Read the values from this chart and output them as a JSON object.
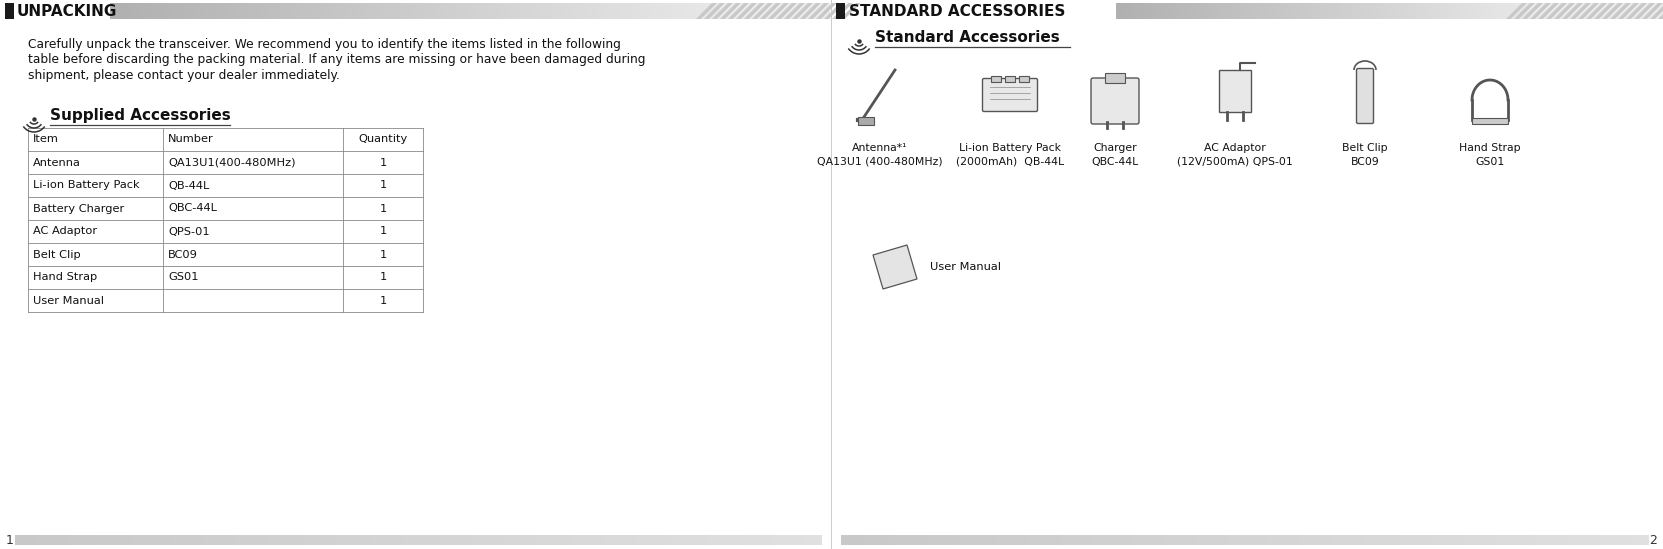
{
  "bg_color": "#ffffff",
  "left_title": "UNPACKING",
  "right_title": "STANDARD ACCESSORIES",
  "body_text_lines": [
    "Carefully unpack the transceiver. We recommend you to identify the items listed in the following",
    "table before discarding the packing material. If any items are missing or have been damaged during",
    "shipment, please contact your dealer immediately."
  ],
  "supplied_heading": "Supplied Accessories",
  "standard_heading": "Standard Accessories",
  "table_headers": [
    "Item",
    "Number",
    "Quantity"
  ],
  "table_rows": [
    [
      "Antenna",
      "QA13U1(400-480MHz)",
      "1"
    ],
    [
      "Li-ion Battery Pack",
      "QB-44L",
      "1"
    ],
    [
      "Battery Charger",
      "QBC-44L",
      "1"
    ],
    [
      "AC Adaptor",
      "QPS-01",
      "1"
    ],
    [
      "Belt Clip",
      "BC09",
      "1"
    ],
    [
      "Hand Strap",
      "GS01",
      "1"
    ],
    [
      "User Manual",
      "",
      "1"
    ]
  ],
  "acc_labels": [
    "Antenna*¹\nQA13U1 (400-480MHz)",
    "Li-ion Battery Pack\n(2000mAh)  QB-44L",
    "Charger\nQBC-44L",
    "AC Adaptor\n(12V/500mA) QPS-01",
    "Belt Clip\nBC09",
    "Hand Strap\nGS01"
  ],
  "page_left": "1",
  "page_right": "2"
}
